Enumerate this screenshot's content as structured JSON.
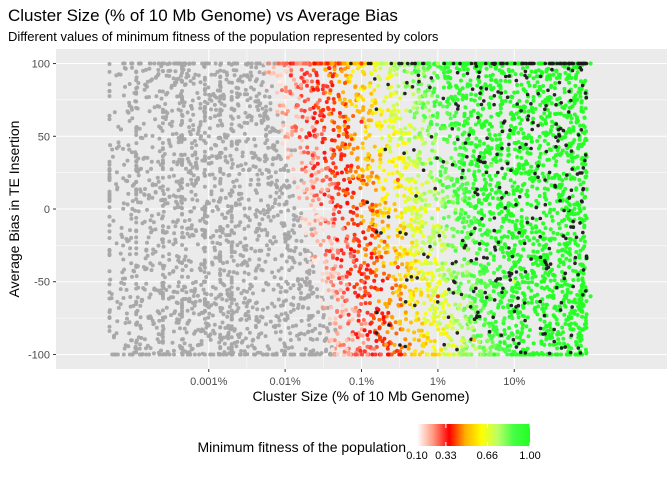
{
  "chart_data": {
    "type": "scatter",
    "title": "Cluster Size (% of 10 Mb Genome) vs Average Bias",
    "subtitle": "Different values of minimum fitness of the population represented by colors",
    "xlabel": "Cluster Size (% of 10 Mb Genome)",
    "ylabel": "Average Bias in TE Insertion",
    "x_scale": "log10",
    "x_unit": "% of 10 Mb genome",
    "xlim": [
      1e-05,
      1000
    ],
    "ylim": [
      -110,
      110
    ],
    "x_ticks": [
      0.001,
      0.01,
      0.1,
      1,
      10
    ],
    "x_tick_labels": [
      "0.001%",
      "0.01%",
      "0.1%",
      "1%",
      "10%"
    ],
    "y_ticks": [
      -100,
      -50,
      0,
      50,
      100
    ],
    "y_tick_labels": [
      "-100",
      "-50",
      "0",
      "50",
      "100"
    ],
    "grid": true,
    "legend": {
      "title": "Minimum fitness of the population",
      "placement": "bottom",
      "kind": "colorbar",
      "ticks": [
        0.1,
        0.33,
        0.66,
        1.0
      ],
      "tick_labels": [
        "0.10",
        "0.33",
        "0.66",
        "1.00"
      ]
    },
    "colors": {
      "panel_background": "#ebebeb",
      "gridline": "#ffffff",
      "low_fitness_points": "#a6a6a6",
      "extinct_points": "#1a1a1a",
      "gradient_stops": [
        "#ffffff",
        "#ff9a80",
        "#ff0000",
        "#ffb000",
        "#ffff00",
        "#bbff66",
        "#44ff44",
        "#22ff22"
      ]
    },
    "series": [
      {
        "color_rule": "Minimum fitness (0.10-1.00) mapped to colorbar; ~0.10 shown grey",
        "note": "Dense cloud of thousands of points; y spans -100..100 at every x; fitness rises with cluster size. Points below are representative samples.",
        "points": [
          {
            "x": 0.0001,
            "y": 100,
            "fitness": 0.1
          },
          {
            "x": 0.0001,
            "y": 0,
            "fitness": 0.1
          },
          {
            "x": 0.0001,
            "y": -100,
            "fitness": 0.1
          },
          {
            "x": 0.001,
            "y": 50,
            "fitness": 0.1
          },
          {
            "x": 0.001,
            "y": -80,
            "fitness": 0.1
          },
          {
            "x": 0.01,
            "y": 95,
            "fitness": 0.15
          },
          {
            "x": 0.01,
            "y": -20,
            "fitness": 0.1
          },
          {
            "x": 0.05,
            "y": 100,
            "fitness": 0.33
          },
          {
            "x": 0.1,
            "y": 100,
            "fitness": 0.4
          },
          {
            "x": 0.1,
            "y": 60,
            "fitness": 0.33
          },
          {
            "x": 0.3,
            "y": 20,
            "fitness": 0.3
          },
          {
            "x": 0.3,
            "y": -40,
            "fitness": 0.33
          },
          {
            "x": 1,
            "y": 100,
            "fitness": 0.75
          },
          {
            "x": 1,
            "y": 0,
            "fitness": 0.55
          },
          {
            "x": 1,
            "y": -60,
            "fitness": 0.4
          },
          {
            "x": 3,
            "y": -90,
            "fitness": 0.5
          },
          {
            "x": 5,
            "y": 30,
            "fitness": 0.8
          },
          {
            "x": 10,
            "y": 80,
            "fitness": 1.0
          },
          {
            "x": 10,
            "y": -50,
            "fitness": 0.7
          },
          {
            "x": 50,
            "y": 0,
            "fitness": 1.0
          },
          {
            "x": 100,
            "y": 100,
            "fitness": 1.0
          },
          {
            "x": 100,
            "y": -60,
            "fitness": 1.0
          }
        ]
      }
    ]
  }
}
